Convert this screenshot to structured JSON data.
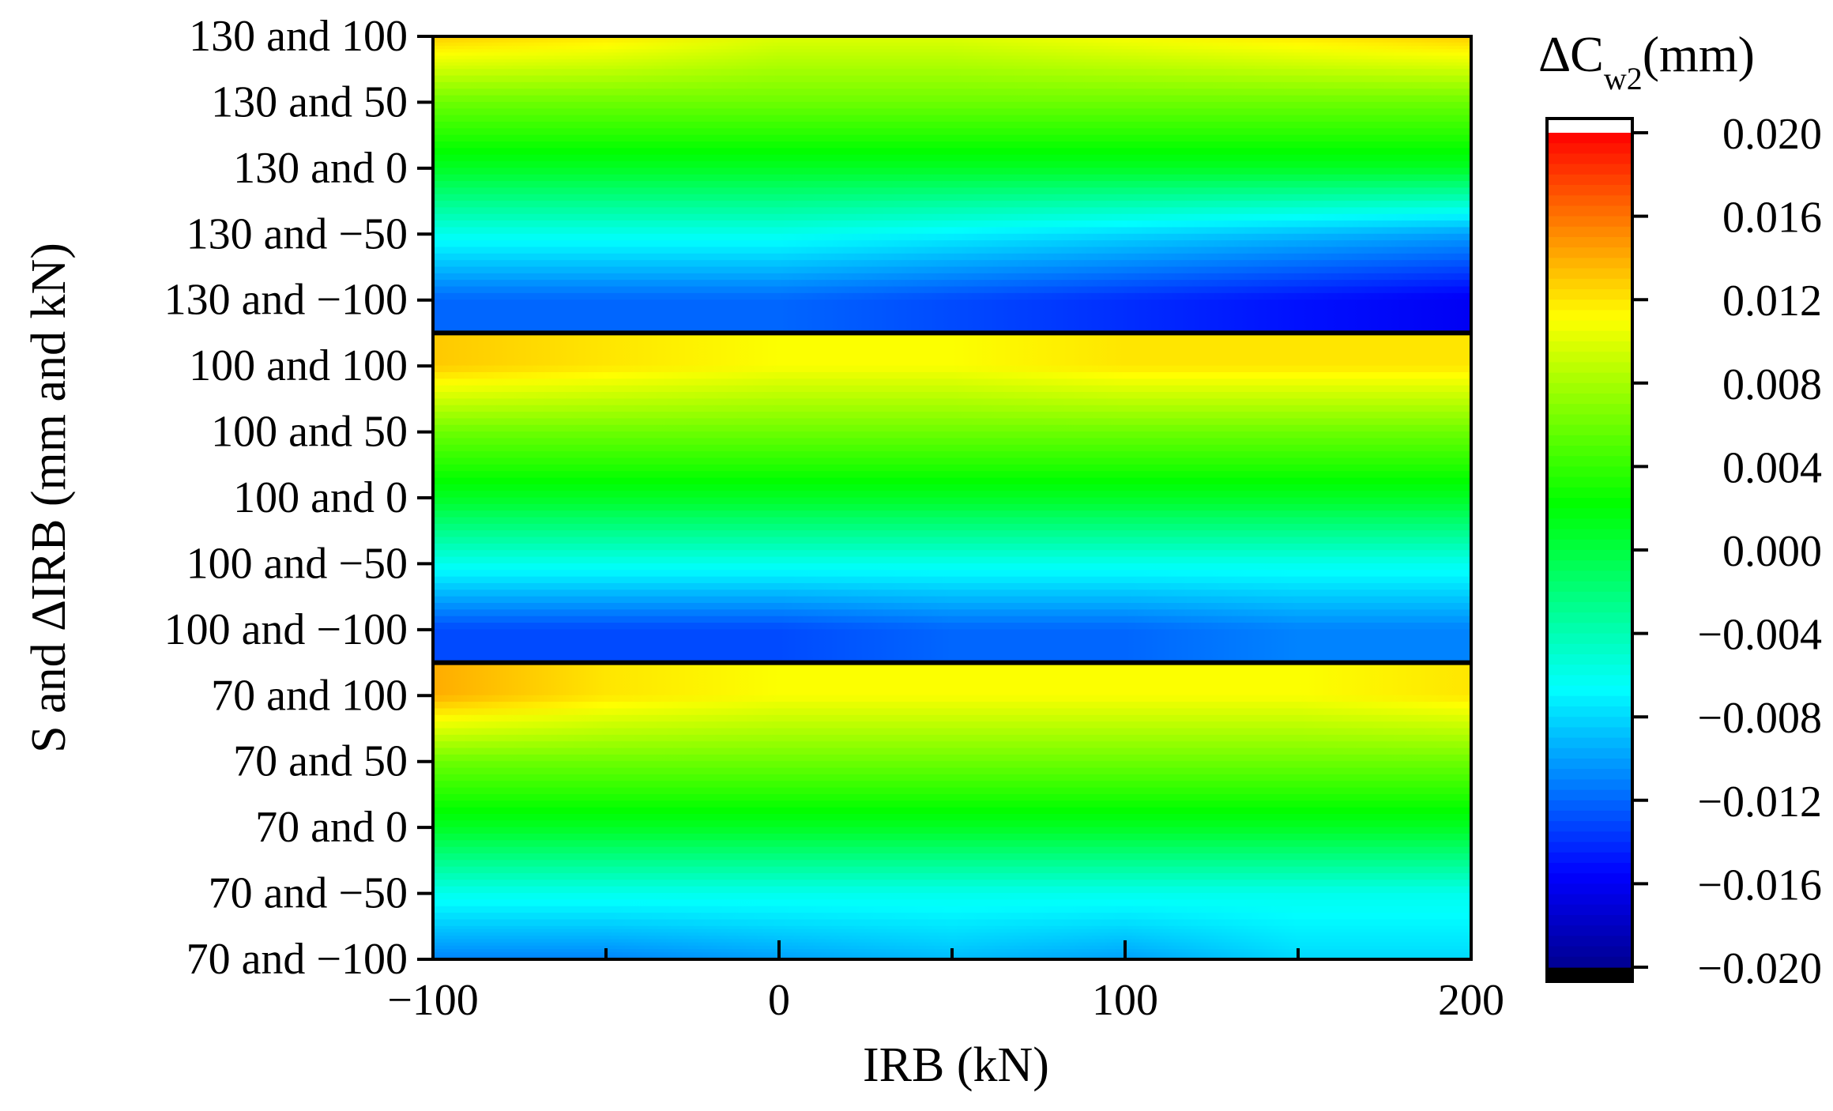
{
  "chart_data": {
    "type": "heatmap",
    "title": "",
    "xlabel": "IRB (kN)",
    "ylabel": "S and ∆IRB (mm and kN)",
    "colorbar_label": {
      "main": "∆C",
      "sub": "w2",
      "unit": "(mm)"
    },
    "xlim": [
      -100,
      200
    ],
    "x_ticks": [
      "−100",
      "0",
      "100",
      "200"
    ],
    "x_tick_values": [
      -100,
      0,
      100,
      200
    ],
    "x_minor_tick_values": [
      -50,
      50,
      150
    ],
    "y_categories": [
      "130 and 100",
      "130 and 50",
      "130 and 0",
      "130 and −50",
      "130 and −100",
      "100 and 100",
      "100 and 50",
      "100 and 0",
      "100 and −50",
      "100 and −100",
      "70 and 100",
      "70 and 50",
      "70 and 0",
      "70 and −50",
      "70 and −100"
    ],
    "panels": [
      {
        "S": 130,
        "start_index": 0
      },
      {
        "S": 100,
        "start_index": 5
      },
      {
        "S": 70,
        "start_index": 10
      }
    ],
    "x": [
      -100,
      -50,
      0,
      50,
      100,
      150,
      200
    ],
    "values": [
      [
        0.013,
        0.012,
        0.01,
        0.01,
        0.011,
        0.012,
        0.013
      ],
      [
        0.006,
        0.006,
        0.006,
        0.006,
        0.006,
        0.006,
        0.006
      ],
      [
        0.001,
        0.001,
        0.001,
        0.001,
        0.001,
        0.001,
        0.001
      ],
      [
        -0.006,
        -0.006,
        -0.006,
        -0.007,
        -0.008,
        -0.009,
        -0.01
      ],
      [
        -0.012,
        -0.012,
        -0.012,
        -0.013,
        -0.014,
        -0.015,
        -0.016
      ],
      [
        0.013,
        0.012,
        0.011,
        0.011,
        0.012,
        0.012,
        0.012
      ],
      [
        0.006,
        0.006,
        0.006,
        0.006,
        0.006,
        0.006,
        0.006
      ],
      [
        0.001,
        0.001,
        0.001,
        0.001,
        0.001,
        0.001,
        0.001
      ],
      [
        -0.006,
        -0.006,
        -0.006,
        -0.006,
        -0.006,
        -0.006,
        -0.006
      ],
      [
        -0.013,
        -0.013,
        -0.013,
        -0.012,
        -0.012,
        -0.011,
        -0.011
      ],
      [
        0.014,
        0.012,
        0.011,
        0.011,
        0.011,
        0.011,
        0.012
      ],
      [
        0.006,
        0.006,
        0.006,
        0.006,
        0.006,
        0.006,
        0.006
      ],
      [
        0.001,
        0.001,
        0.001,
        0.001,
        0.001,
        0.001,
        0.001
      ],
      [
        -0.006,
        -0.006,
        -0.006,
        -0.006,
        -0.006,
        -0.006,
        -0.006
      ],
      [
        -0.011,
        -0.011,
        -0.01,
        -0.009,
        -0.01,
        -0.008,
        -0.008
      ]
    ],
    "zlim": [
      -0.02,
      0.02
    ],
    "colorbar_ticks": [
      "0.020",
      "0.016",
      "0.012",
      "0.008",
      "0.004",
      "0.000",
      "−0.004",
      "−0.008",
      "−0.012",
      "−0.016",
      "−0.020"
    ],
    "colorbar_tick_values": [
      0.02,
      0.016,
      0.012,
      0.008,
      0.004,
      0.0,
      -0.004,
      -0.008,
      -0.012,
      -0.016,
      -0.02
    ],
    "colormap": [
      "#000090",
      "#0000ff",
      "#0080ff",
      "#00ffff",
      "#00ff80",
      "#00ff00",
      "#80ff00",
      "#ffff00",
      "#ff8000",
      "#ff0000"
    ],
    "over_color": "#ffffff",
    "under_color": "#000000",
    "grid": false,
    "legend": "colorbar-right"
  }
}
